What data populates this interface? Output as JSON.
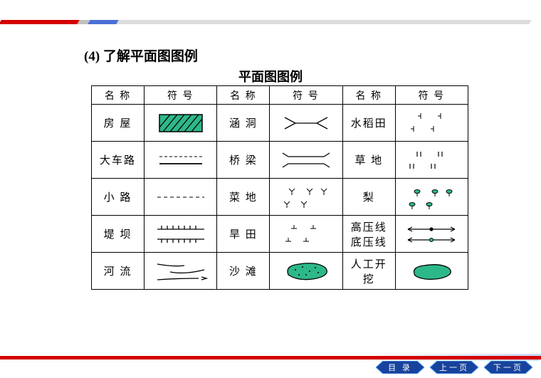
{
  "heading": "(4) 了解平面图图例",
  "subheading": "平面图图例",
  "headers": {
    "name": "名 称",
    "symbol": "符  号"
  },
  "rows": [
    {
      "n1": "房 屋",
      "s1": "house",
      "n2": "涵 洞",
      "s2": "culvert",
      "n3": "水稻田",
      "s3": "paddy"
    },
    {
      "n1": "大车路",
      "s1": "road",
      "n2": "桥 梁",
      "s2": "bridge",
      "n3": "草 地",
      "s3": "grass"
    },
    {
      "n1": "小 路",
      "s1": "path",
      "n2": "菜 地",
      "s2": "veg",
      "n3": "梨",
      "s3": "orchard"
    },
    {
      "n1": "堤 坝",
      "s1": "dam",
      "n2": "旱 田",
      "s2": "dryfield",
      "n3": "高压线\n底压线",
      "s3": "power"
    },
    {
      "n1": "河 流",
      "s1": "river",
      "n2": "沙 滩",
      "s2": "beach",
      "n3": "人工开挖",
      "s3": "excavate"
    }
  ],
  "nav": [
    {
      "label": "目 录"
    },
    {
      "label": "上一页"
    },
    {
      "label": "下一页"
    }
  ],
  "colors": {
    "accent_red": "#d40000",
    "green_fill": "#2db88a",
    "nav_fill": "#18439c"
  }
}
